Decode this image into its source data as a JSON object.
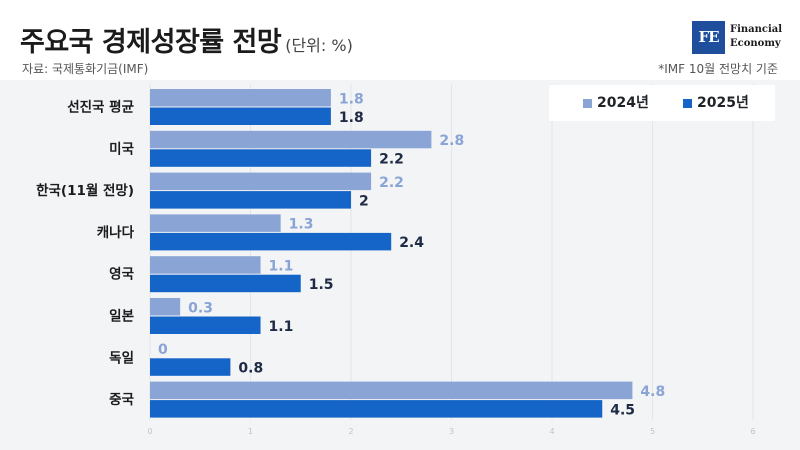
{
  "header": {
    "title": "주요국 경제성장률 전망",
    "unit": "(단위: %)",
    "source": "자료: 국제통화기금(IMF)",
    "basis": "*IMF 10월 전망치 기준"
  },
  "logo": {
    "mark": "FE",
    "line1": "Financial",
    "line2": "Economy"
  },
  "colors": {
    "series_2024": "#8aa4d6",
    "series_2025": "#1565c8",
    "label_2024": "#8aa4d6",
    "label_2025": "#1f2a44",
    "panel": "#f2f4f6",
    "grid": "#e2e5e9"
  },
  "chart_data": {
    "type": "bar",
    "orientation": "horizontal",
    "categories": [
      "선진국 평균",
      "미국",
      "한국(11월 전망)",
      "캐나다",
      "영국",
      "일본",
      "독일",
      "중국"
    ],
    "series": [
      {
        "name": "2024년",
        "values": [
          1.8,
          2.8,
          2.2,
          1.3,
          1.1,
          0.3,
          0,
          4.8
        ]
      },
      {
        "name": "2025년",
        "values": [
          1.8,
          2.2,
          2,
          2.4,
          1.5,
          1.1,
          0.8,
          4.5
        ]
      }
    ],
    "xlim": [
      0,
      6
    ],
    "xticks": [
      0,
      1,
      2,
      3,
      4,
      5,
      6
    ],
    "grid": true,
    "legend_position": "top-right"
  }
}
